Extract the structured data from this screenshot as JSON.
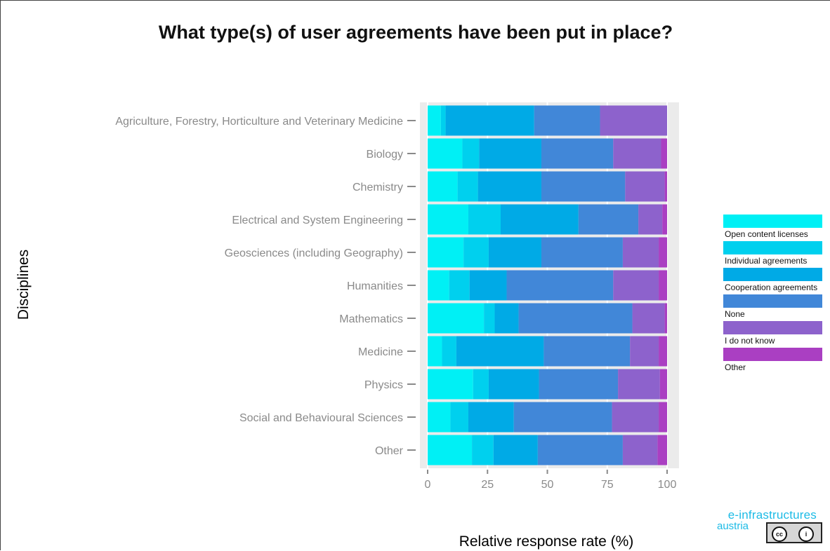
{
  "chart_data": {
    "type": "bar",
    "orientation": "horizontal",
    "stacked": true,
    "title": "What type(s) of user agreements have been put in place?",
    "xlabel": "Relative response rate (%)",
    "ylabel": "Disciplines",
    "xlim": [
      0,
      100
    ],
    "xticks": [
      0,
      25,
      50,
      75,
      100
    ],
    "xtick_labels": [
      "0",
      "25",
      "50",
      "75",
      "100"
    ],
    "grid": true,
    "legend_position": "right",
    "categories": [
      "Agriculture, Forestry, Horticulture and Veterinary Medicine",
      "Biology",
      "Chemistry",
      "Electrical and System Engineering",
      "Geosciences (including Geography)",
      "Humanities",
      "Mathematics",
      "Medicine",
      "Physics",
      "Social and Behavioural Sciences",
      "Other"
    ],
    "series": [
      {
        "name": "Open content licenses",
        "color": "#00f0f5",
        "values": [
          5.5,
          14.5,
          12.5,
          17,
          15,
          9,
          23.5,
          6,
          19,
          9.5,
          18.5
        ]
      },
      {
        "name": "Individual agreements",
        "color": "#00d0ee",
        "values": [
          2,
          7,
          8.5,
          13.5,
          10.5,
          8.5,
          4.5,
          6,
          6.5,
          7.5,
          9
        ]
      },
      {
        "name": "Cooperation agreements",
        "color": "#00aae6",
        "values": [
          37,
          26,
          26.5,
          32.5,
          22,
          15.5,
          10,
          36.5,
          21,
          19,
          18.5
        ]
      },
      {
        "name": "None",
        "color": "#4187d8",
        "values": [
          27.5,
          30,
          35,
          25,
          34,
          44.5,
          47.5,
          36,
          33,
          41,
          35.5
        ]
      },
      {
        "name": "I do not know",
        "color": "#8d62cc",
        "values": [
          28,
          20,
          16.5,
          10,
          15,
          19,
          13.5,
          12,
          17.5,
          19.5,
          14.5
        ]
      },
      {
        "name": "Other",
        "color": "#aa3fc2",
        "values": [
          0,
          2.5,
          1,
          2,
          3.5,
          3.5,
          1,
          3.5,
          3,
          3.5,
          4
        ]
      }
    ],
    "panel_color": "#ebebeb",
    "grid_color": "#ffffff"
  },
  "logo": {
    "line1": "e-infrastructures",
    "line2": "austria",
    "license_badge": [
      "cc",
      "i"
    ]
  }
}
